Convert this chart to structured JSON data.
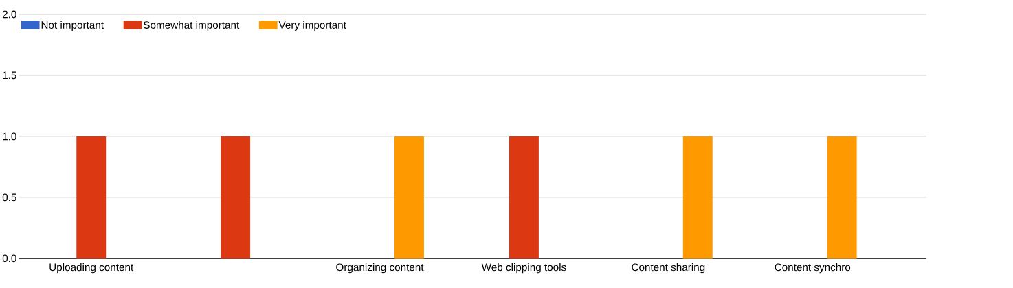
{
  "chart_data": {
    "type": "bar",
    "categories": [
      "Uploading content",
      null,
      "Organizing content",
      "Web clipping tools",
      "Content sharing",
      "Content synchro"
    ],
    "series": [
      {
        "name": "Not important",
        "color": "#3366cc",
        "values": [
          0,
          0,
          0,
          0,
          0,
          0
        ]
      },
      {
        "name": "Somewhat important",
        "color": "#dc3912",
        "values": [
          1,
          1,
          0,
          1,
          0,
          0
        ]
      },
      {
        "name": "Very important",
        "color": "#ff9900",
        "values": [
          0,
          0,
          1,
          0,
          1,
          1
        ]
      }
    ],
    "ylim": [
      0,
      2
    ],
    "yticks": [
      {
        "value": 0,
        "label": "0.0"
      },
      {
        "value": 0.5,
        "label": "0.5"
      },
      {
        "value": 1,
        "label": "1.0"
      },
      {
        "value": 1.5,
        "label": "1.5"
      },
      {
        "value": 2,
        "label": "2.0"
      }
    ],
    "grid": "y",
    "legend": "top left"
  }
}
